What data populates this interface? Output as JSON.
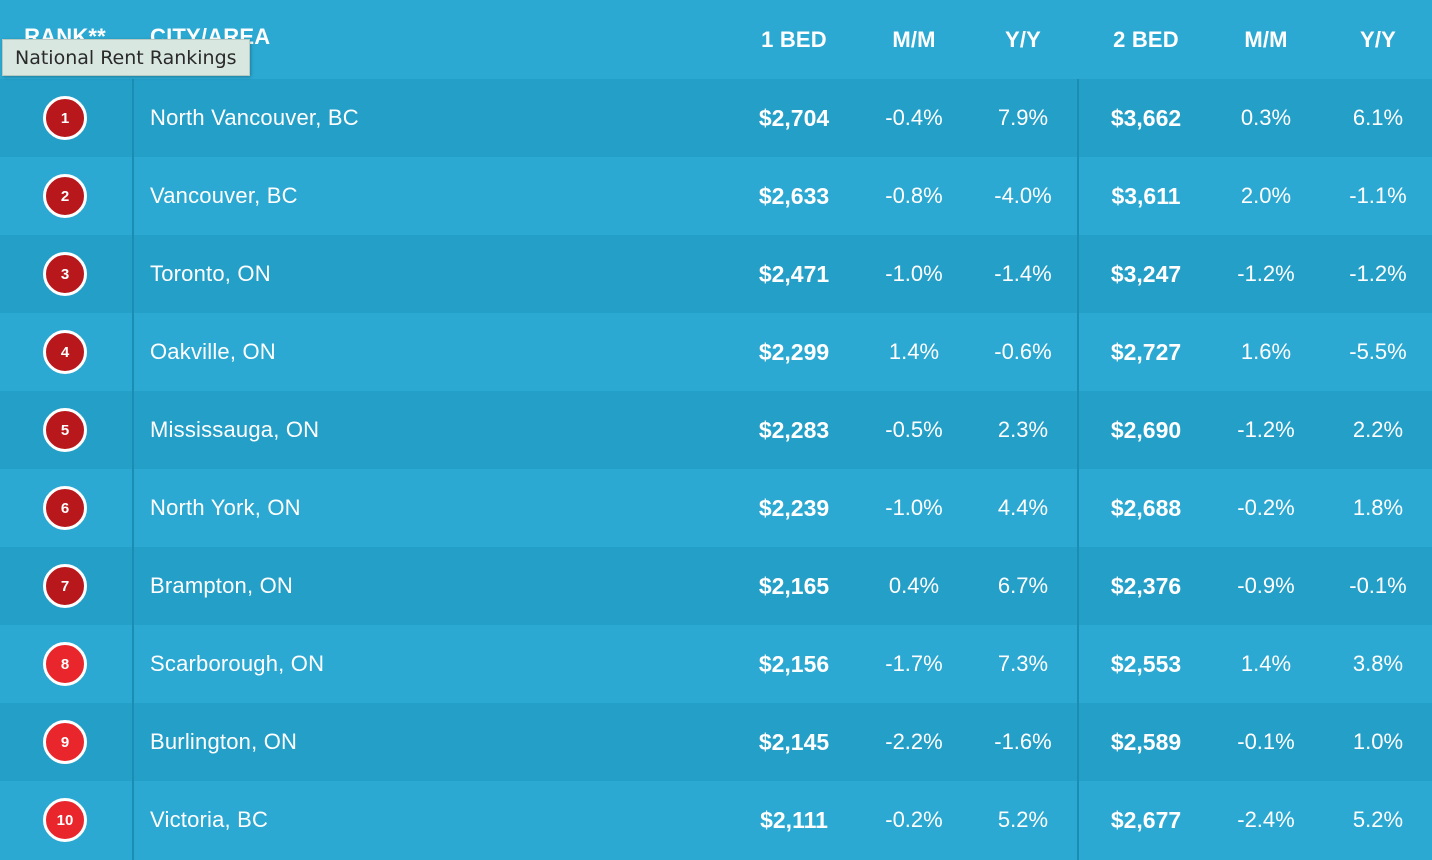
{
  "tooltip": "National Rent Rankings",
  "header": {
    "rank": "RANK**",
    "city": "CITY/AREA",
    "bed1": "1 BED",
    "mm1": "M/M",
    "yy1": "Y/Y",
    "bed2": "2 BED",
    "mm2": "M/M",
    "yy2": "Y/Y"
  },
  "colors": {
    "background": "#2ba9d2",
    "row_alt": "#249fc8",
    "badge_dark": "#b8181c",
    "badge_bright": "#e8262b"
  },
  "rows": [
    {
      "rank": "1",
      "city": "North Vancouver, BC",
      "bed1": "$2,704",
      "mm1": "-0.4%",
      "yy1": "7.9%",
      "bed2": "$3,662",
      "mm2": "0.3%",
      "yy2": "6.1%",
      "badge_color": "#b8181c"
    },
    {
      "rank": "2",
      "city": "Vancouver, BC",
      "bed1": "$2,633",
      "mm1": "-0.8%",
      "yy1": "-4.0%",
      "bed2": "$3,611",
      "mm2": "2.0%",
      "yy2": "-1.1%",
      "badge_color": "#b8181c"
    },
    {
      "rank": "3",
      "city": "Toronto, ON",
      "bed1": "$2,471",
      "mm1": "-1.0%",
      "yy1": "-1.4%",
      "bed2": "$3,247",
      "mm2": "-1.2%",
      "yy2": "-1.2%",
      "badge_color": "#b8181c"
    },
    {
      "rank": "4",
      "city": "Oakville, ON",
      "bed1": "$2,299",
      "mm1": "1.4%",
      "yy1": "-0.6%",
      "bed2": "$2,727",
      "mm2": "1.6%",
      "yy2": "-5.5%",
      "badge_color": "#b8181c"
    },
    {
      "rank": "5",
      "city": "Mississauga, ON",
      "bed1": "$2,283",
      "mm1": "-0.5%",
      "yy1": "2.3%",
      "bed2": "$2,690",
      "mm2": "-1.2%",
      "yy2": "2.2%",
      "badge_color": "#b8181c"
    },
    {
      "rank": "6",
      "city": "North York, ON",
      "bed1": "$2,239",
      "mm1": "-1.0%",
      "yy1": "4.4%",
      "bed2": "$2,688",
      "mm2": "-0.2%",
      "yy2": "1.8%",
      "badge_color": "#b8181c"
    },
    {
      "rank": "7",
      "city": "Brampton, ON",
      "bed1": "$2,165",
      "mm1": "0.4%",
      "yy1": "6.7%",
      "bed2": "$2,376",
      "mm2": "-0.9%",
      "yy2": "-0.1%",
      "badge_color": "#b8181c"
    },
    {
      "rank": "8",
      "city": "Scarborough, ON",
      "bed1": "$2,156",
      "mm1": "-1.7%",
      "yy1": "7.3%",
      "bed2": "$2,553",
      "mm2": "1.4%",
      "yy2": "3.8%",
      "badge_color": "#e8262b"
    },
    {
      "rank": "9",
      "city": "Burlington, ON",
      "bed1": "$2,145",
      "mm1": "-2.2%",
      "yy1": "-1.6%",
      "bed2": "$2,589",
      "mm2": "-0.1%",
      "yy2": "1.0%",
      "badge_color": "#e8262b"
    },
    {
      "rank": "10",
      "city": "Victoria, BC",
      "bed1": "$2,111",
      "mm1": "-0.2%",
      "yy1": "5.2%",
      "bed2": "$2,677",
      "mm2": "-2.4%",
      "yy2": "5.2%",
      "badge_color": "#e8262b"
    }
  ]
}
